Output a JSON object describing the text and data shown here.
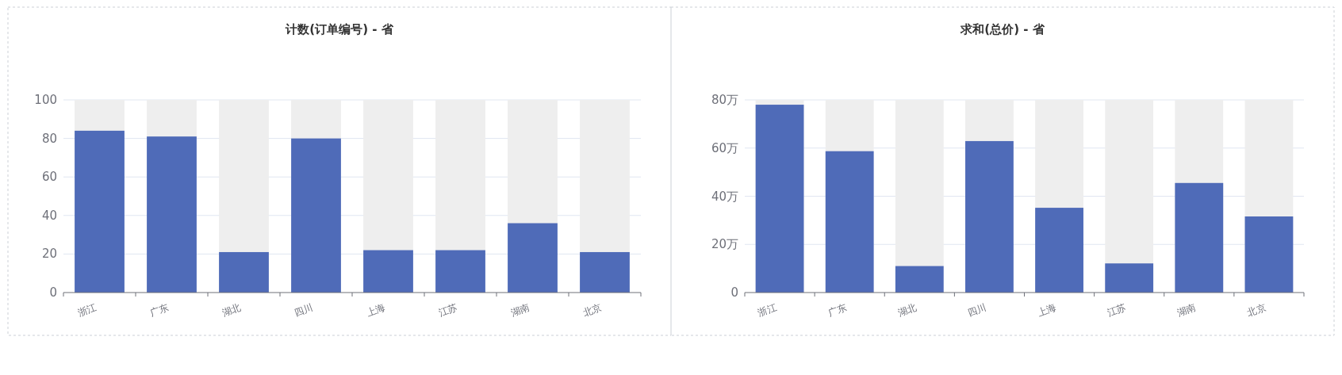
{
  "chart_data": [
    {
      "type": "bar",
      "title": "计数(订单编号) - 省",
      "categories": [
        "浙江",
        "广东",
        "湖北",
        "四川",
        "上海",
        "江苏",
        "湖南",
        "北京"
      ],
      "series": [
        {
          "color": "#4f6bb8",
          "values": [
            84,
            81,
            21,
            80,
            22,
            22,
            36,
            21
          ]
        }
      ],
      "ylim": [
        0,
        100
      ],
      "yticks": [
        0,
        20,
        40,
        60,
        80,
        100
      ],
      "grid": "y"
    },
    {
      "type": "bar",
      "title": "求和(总价) - 省",
      "categories": [
        "浙江",
        "广东",
        "湖北",
        "四川",
        "上海",
        "江苏",
        "湖南",
        "北京"
      ],
      "series": [
        {
          "color": "#4f6bb8",
          "values": [
            78,
            58.7,
            11,
            62.9,
            35.2,
            12.1,
            45.5,
            31.6
          ]
        }
      ],
      "ylim": [
        0,
        80
      ],
      "yticks": [
        0,
        {
          "value": 20,
          "label": "20万"
        },
        {
          "value": 40,
          "label": "40万"
        },
        {
          "value": 60,
          "label": "60万"
        },
        {
          "value": 80,
          "label": "80万"
        }
      ],
      "grid": "y"
    }
  ]
}
